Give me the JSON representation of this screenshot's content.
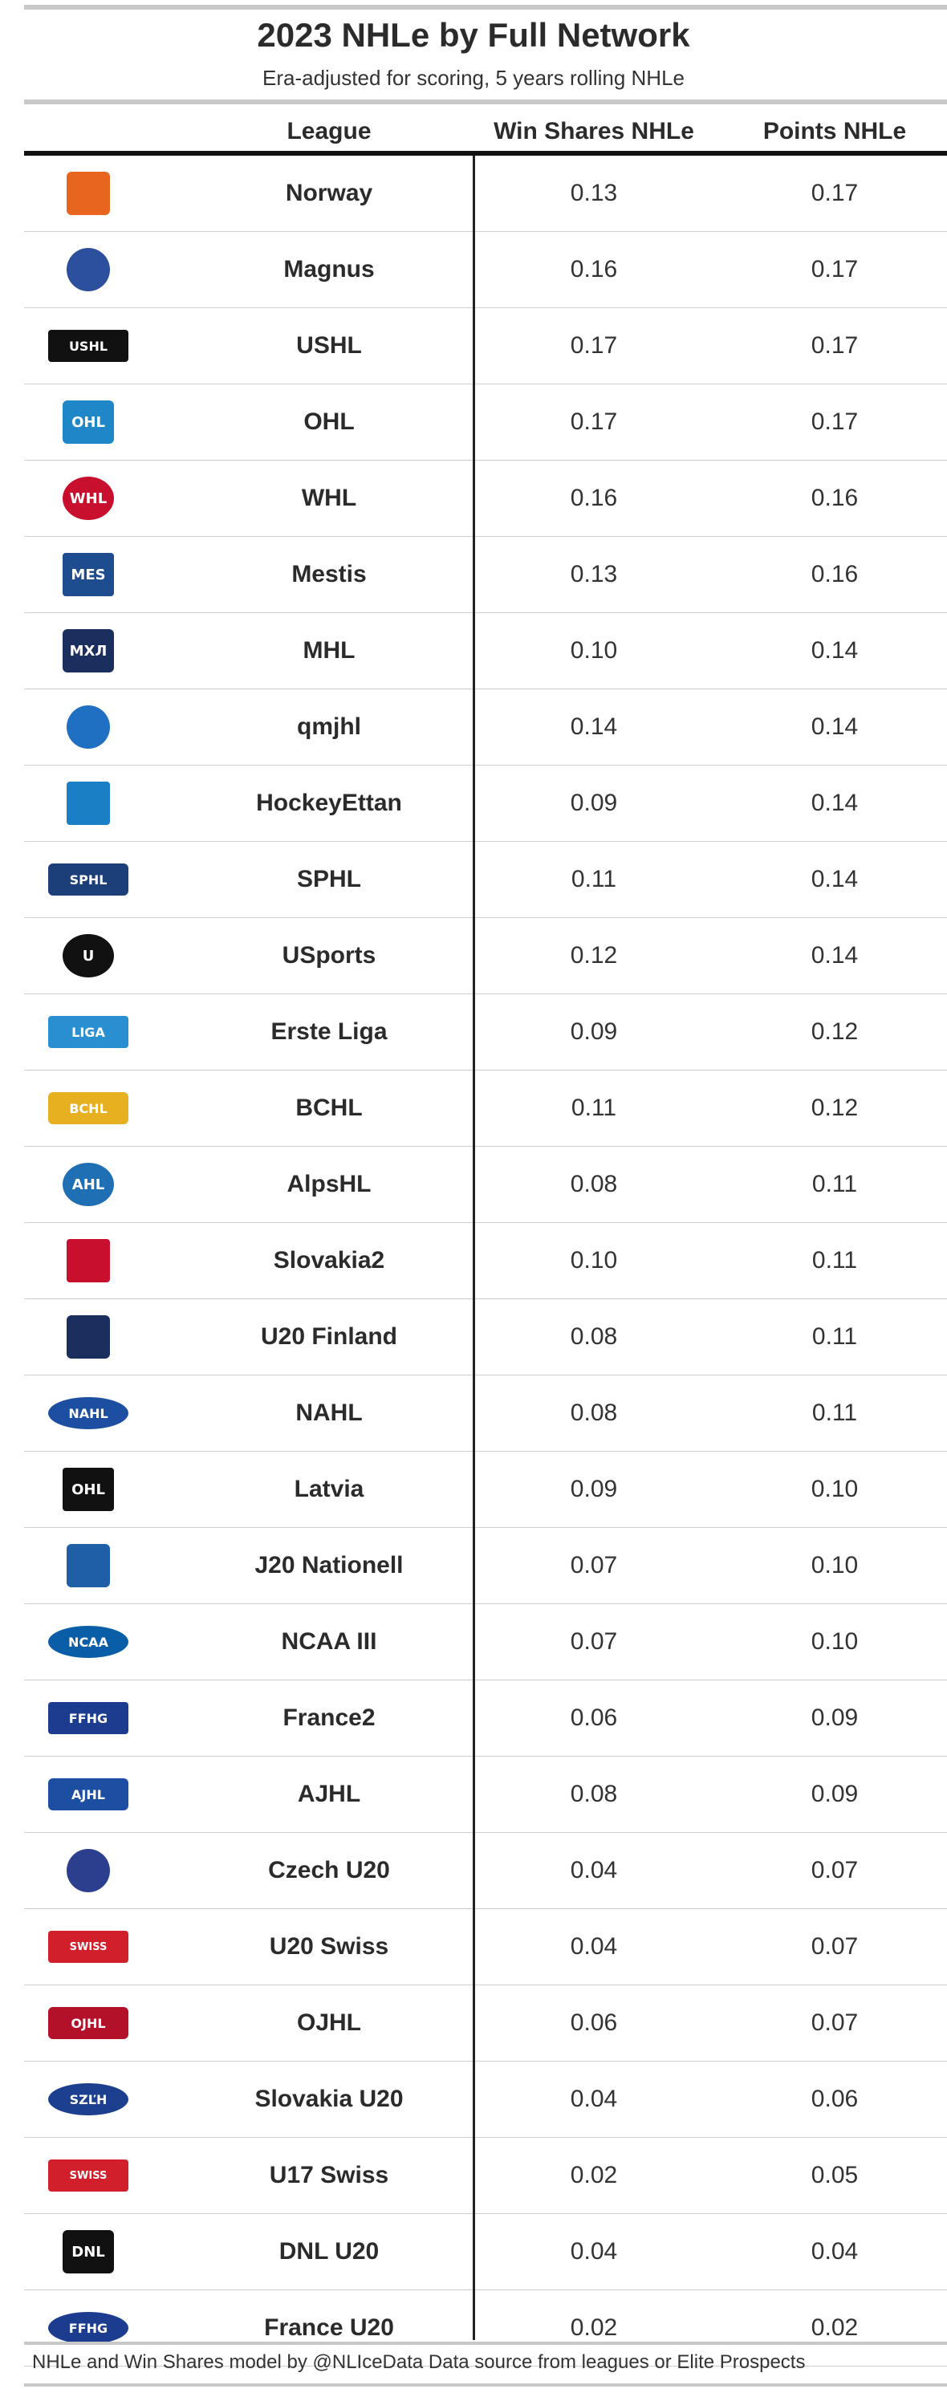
{
  "title": "2023 NHLe by Full Network",
  "subtitle": "Era-adjusted for scoring, 5 years rolling NHLe",
  "columns": {
    "league": "League",
    "ws": "Win Shares NHLe",
    "pts": "Points NHLe"
  },
  "footer": "NHLe and Win Shares model by @NLIceData Data source from leagues or Elite Prospects",
  "chart_data": {
    "type": "table",
    "columns": [
      "League",
      "Win Shares NHLe",
      "Points NHLe"
    ],
    "rows": [
      {
        "league": "Norway",
        "ws": "0.13",
        "pts": "0.17",
        "logo": "norway-logo",
        "color": "#e8651f",
        "logo_text": ""
      },
      {
        "league": "Magnus",
        "ws": "0.16",
        "pts": "0.17",
        "logo": "magnus-logo",
        "color": "#2c4f9e",
        "logo_text": ""
      },
      {
        "league": "USHL",
        "ws": "0.17",
        "pts": "0.17",
        "logo": "ushl-logo",
        "color": "#111111",
        "logo_text": "USHL"
      },
      {
        "league": "OHL",
        "ws": "0.17",
        "pts": "0.17",
        "logo": "ohl-logo",
        "color": "#1f86c8",
        "logo_text": "OHL"
      },
      {
        "league": "WHL",
        "ws": "0.16",
        "pts": "0.16",
        "logo": "whl-logo",
        "color": "#c8102e",
        "logo_text": "WHL"
      },
      {
        "league": "Mestis",
        "ws": "0.13",
        "pts": "0.16",
        "logo": "mestis-logo",
        "color": "#1d4c8f",
        "logo_text": "MES"
      },
      {
        "league": "MHL",
        "ws": "0.10",
        "pts": "0.14",
        "logo": "mhl-logo",
        "color": "#1b2f5e",
        "logo_text": "МХЛ"
      },
      {
        "league": "qmjhl",
        "ws": "0.14",
        "pts": "0.14",
        "logo": "qmjhl-logo",
        "color": "#1f6fc2",
        "logo_text": ""
      },
      {
        "league": "HockeyEttan",
        "ws": "0.09",
        "pts": "0.14",
        "logo": "hockeyettan-logo",
        "color": "#1a7fc4",
        "logo_text": ""
      },
      {
        "league": "SPHL",
        "ws": "0.11",
        "pts": "0.14",
        "logo": "sphl-logo",
        "color": "#1c3f7a",
        "logo_text": "SPHL"
      },
      {
        "league": "USports",
        "ws": "0.12",
        "pts": "0.14",
        "logo": "usports-logo",
        "color": "#111111",
        "logo_text": "U"
      },
      {
        "league": "Erste Liga",
        "ws": "0.09",
        "pts": "0.12",
        "logo": "erste-liga-logo",
        "color": "#2a8fd0",
        "logo_text": "LIGA"
      },
      {
        "league": "BCHL",
        "ws": "0.11",
        "pts": "0.12",
        "logo": "bchl-logo",
        "color": "#e7b020",
        "logo_text": "BCHL"
      },
      {
        "league": "AlpsHL",
        "ws": "0.08",
        "pts": "0.11",
        "logo": "alpshl-logo",
        "color": "#1f6fb5",
        "logo_text": "AHL"
      },
      {
        "league": "Slovakia2",
        "ws": "0.10",
        "pts": "0.11",
        "logo": "slovakia2-logo",
        "color": "#c8102e",
        "logo_text": ""
      },
      {
        "league": "U20 Finland",
        "ws": "0.08",
        "pts": "0.11",
        "logo": "u20-finland-logo",
        "color": "#1b2f5e",
        "logo_text": ""
      },
      {
        "league": "NAHL",
        "ws": "0.08",
        "pts": "0.11",
        "logo": "nahl-logo",
        "color": "#1c4fa1",
        "logo_text": "NAHL"
      },
      {
        "league": "Latvia",
        "ws": "0.09",
        "pts": "0.10",
        "logo": "latvia-logo",
        "color": "#111111",
        "logo_text": "OHL"
      },
      {
        "league": "J20 Nationell",
        "ws": "0.07",
        "pts": "0.10",
        "logo": "j20-nationell-logo",
        "color": "#1f5fa8",
        "logo_text": ""
      },
      {
        "league": "NCAA III",
        "ws": "0.07",
        "pts": "0.10",
        "logo": "ncaa-logo",
        "color": "#0a5ea8",
        "logo_text": "NCAA"
      },
      {
        "league": "France2",
        "ws": "0.06",
        "pts": "0.09",
        "logo": "france2-logo",
        "color": "#1b3c8f",
        "logo_text": "FFHG"
      },
      {
        "league": "AJHL",
        "ws": "0.08",
        "pts": "0.09",
        "logo": "ajhl-logo",
        "color": "#1c4fa1",
        "logo_text": "AJHL"
      },
      {
        "league": "Czech U20",
        "ws": "0.04",
        "pts": "0.07",
        "logo": "czech-u20-logo",
        "color": "#2c3f8f",
        "logo_text": ""
      },
      {
        "league": "U20 Swiss",
        "ws": "0.04",
        "pts": "0.07",
        "logo": "u20-swiss-logo",
        "color": "#d11f2b",
        "logo_text": "SWISS"
      },
      {
        "league": "OJHL",
        "ws": "0.06",
        "pts": "0.07",
        "logo": "ojhl-logo",
        "color": "#b3102a",
        "logo_text": "OJHL"
      },
      {
        "league": "Slovakia U20",
        "ws": "0.04",
        "pts": "0.06",
        "logo": "slovakia-u20-logo",
        "color": "#1c3f8f",
        "logo_text": "SZĽH"
      },
      {
        "league": "U17 Swiss",
        "ws": "0.02",
        "pts": "0.05",
        "logo": "u17-swiss-logo",
        "color": "#d11f2b",
        "logo_text": "SWISS"
      },
      {
        "league": "DNL U20",
        "ws": "0.04",
        "pts": "0.04",
        "logo": "dnl-logo",
        "color": "#111111",
        "logo_text": "DNL"
      },
      {
        "league": "France U20",
        "ws": "0.02",
        "pts": "0.02",
        "logo": "france-u20-logo",
        "color": "#1b3c8f",
        "logo_text": "FFHG"
      }
    ]
  }
}
